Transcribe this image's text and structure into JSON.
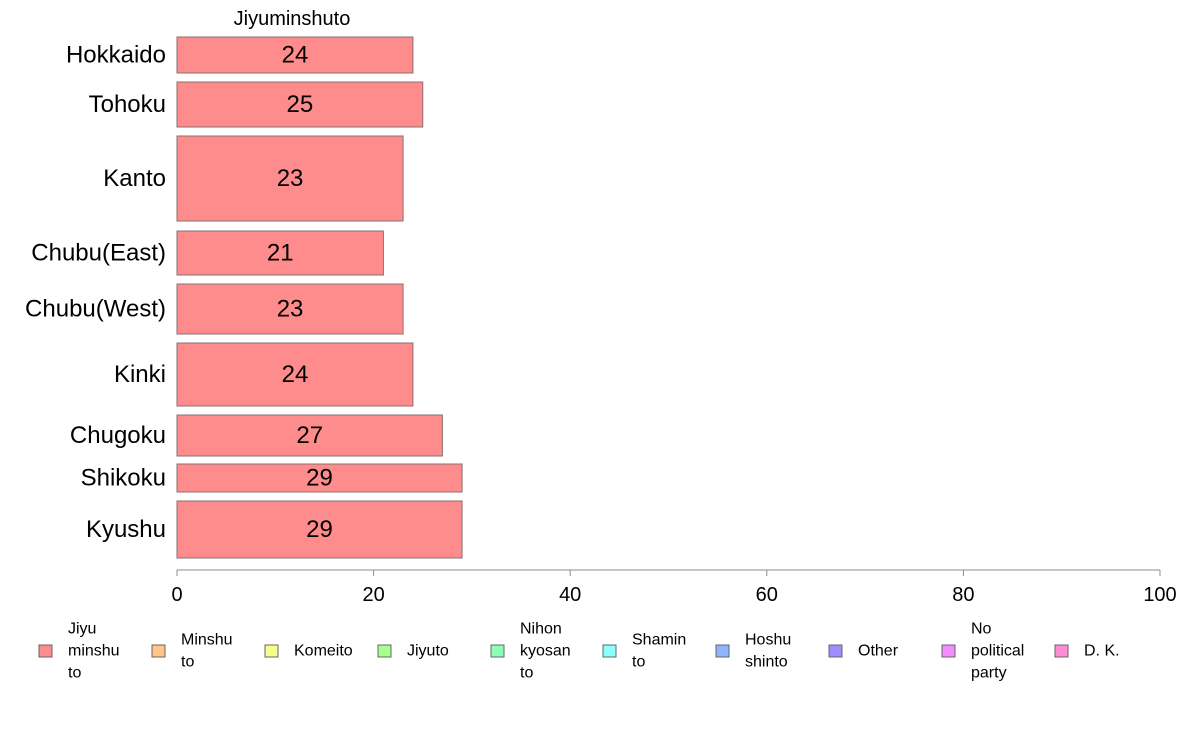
{
  "chart_data": {
    "type": "bar",
    "orientation": "horizontal",
    "title": "Jiyuminshuto",
    "categories": [
      "Hokkaido",
      "Tohoku",
      "Kanto",
      "Chubu(East)",
      "Chubu(West)",
      "Kinki",
      "Chugoku",
      "Shikoku",
      "Kyushu"
    ],
    "series": [
      {
        "name": "Jiyuminshuto",
        "values": [
          24,
          25,
          23,
          21,
          23,
          24,
          27,
          29,
          29
        ]
      }
    ],
    "value_labels": [
      "24",
      "25",
      "23",
      "21",
      "23",
      "24",
      "27",
      "29",
      "29"
    ],
    "xlim": [
      0,
      100
    ],
    "x_ticks": [
      0,
      20,
      40,
      60,
      80,
      100
    ],
    "x_tick_labels": [
      "0",
      "20",
      "40",
      "60",
      "80",
      "100"
    ],
    "grid": false,
    "bar_color": "#ff8c8c",
    "legend": {
      "placement": "bottom",
      "items": [
        {
          "lines": [
            "Jiyu",
            "minshu",
            "to"
          ],
          "color": "#ff8c8c"
        },
        {
          "lines": [
            "Minshu",
            "to"
          ],
          "color": "#ffc68c"
        },
        {
          "lines": [
            "Komeito"
          ],
          "color": "#f4ff8c"
        },
        {
          "lines": [
            "Jiyuto"
          ],
          "color": "#a8ff8c"
        },
        {
          "lines": [
            "Nihon",
            "kyosan",
            "to"
          ],
          "color": "#8cffb4"
        },
        {
          "lines": [
            "Shamin",
            "to"
          ],
          "color": "#8cffff"
        },
        {
          "lines": [
            "Hoshu",
            "shinto"
          ],
          "color": "#8cb4ff"
        },
        {
          "lines": [
            "Other"
          ],
          "color": "#a08cff"
        },
        {
          "lines": [
            "No",
            "political",
            "party"
          ],
          "color": "#f48cff"
        },
        {
          "lines": [
            "D. K."
          ],
          "color": "#ff8cd2"
        }
      ]
    }
  }
}
